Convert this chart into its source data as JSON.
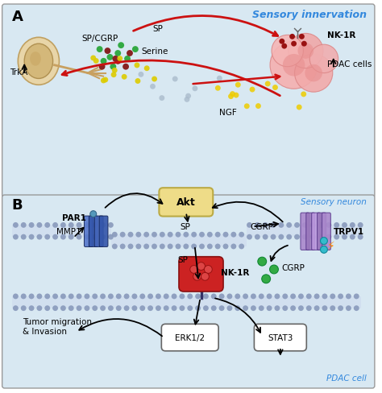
{
  "bg_color": "#d8e8f2",
  "panel_A_bg": "#d8e8f2",
  "panel_B_bg": "#d8e8f2",
  "border_color": "#999999",
  "sensory_innervation": "Sensory innervation",
  "sensory_neuron": "Sensory neuron",
  "pdac_cell": "PDAC cell",
  "label_color": "#3388dd",
  "membrane_dot_color": "#9999bb",
  "membrane_line_color": "#aaaacc",
  "neuron_body_color": "#d4b87a",
  "neuron_edge_color": "#b09050",
  "pdac_cell_fill": "#f5aaaa",
  "pdac_cell_edge": "#dd8888",
  "nk1r_fill": "#cc2222",
  "nk1r_edge": "#991111",
  "par1_colors": [
    "#4477cc",
    "#2255aa",
    "#5588dd"
  ],
  "trpv1_colors": [
    "#aa88cc",
    "#9977bb",
    "#bb99dd"
  ],
  "akt_fill": "#eedc88",
  "akt_edge": "#bbaa44",
  "erk_fill": "#ffffff",
  "erk_edge": "#666666",
  "stat3_fill": "#ffffff",
  "stat3_edge": "#666666",
  "green_dot": "#33aa44",
  "yellow_dot": "#ddcc00",
  "dark_red_dot": "#882222",
  "gray_dot": "#aaaaaa",
  "teal_dot": "#44aacc",
  "red_arrow": "#cc1111",
  "black_arrow": "#111111"
}
